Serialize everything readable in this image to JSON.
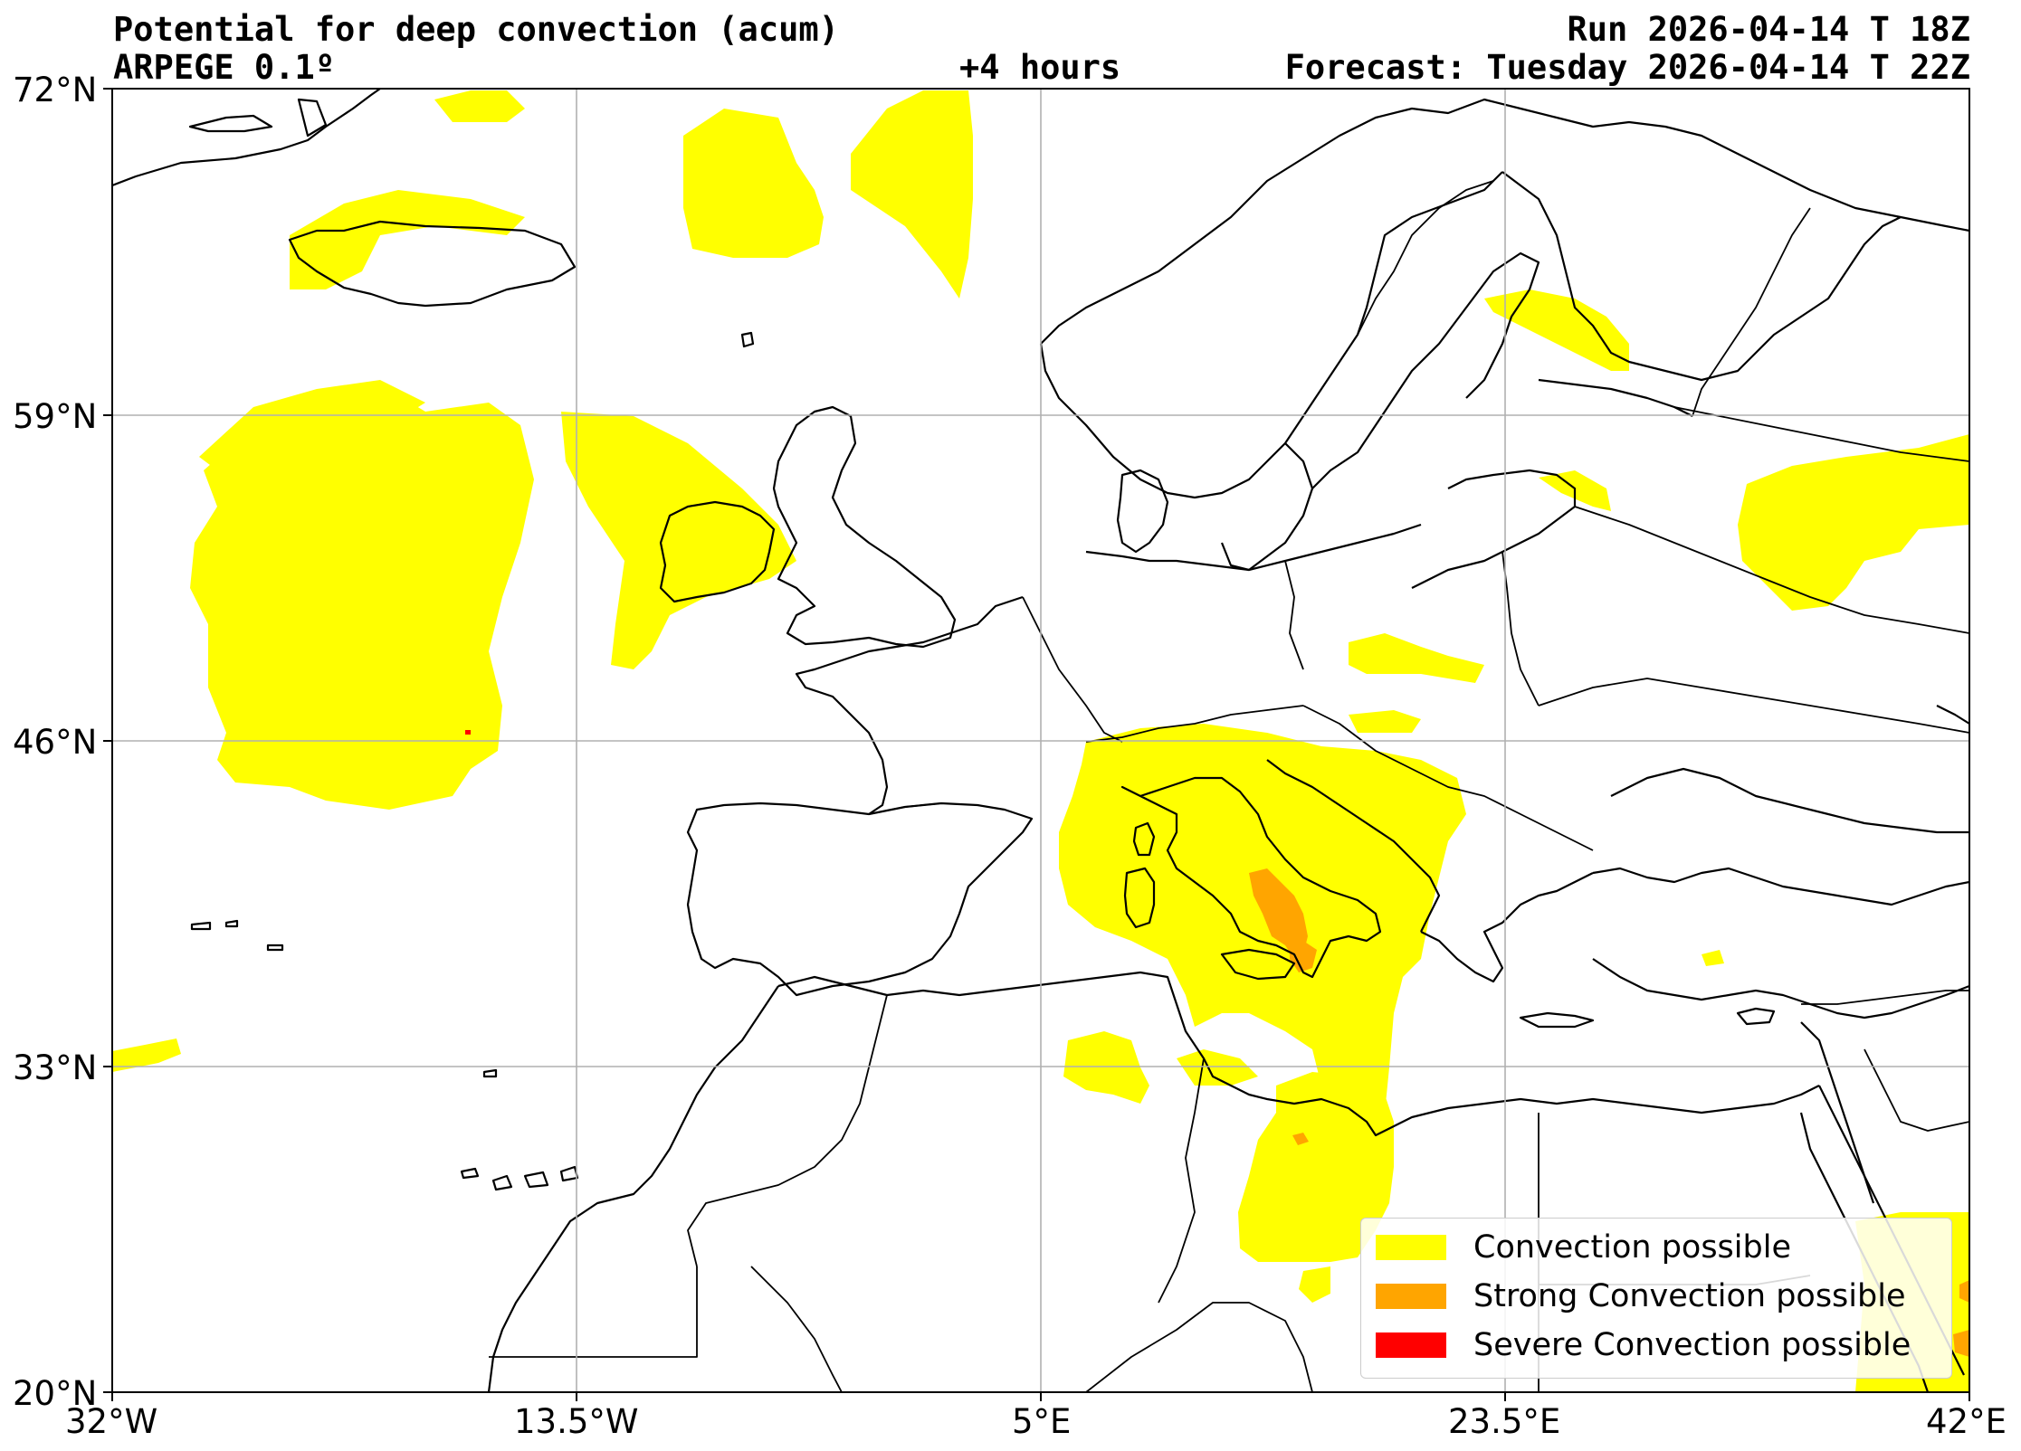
{
  "header": {
    "title": "Potential for deep convection (acum)",
    "model": "ARPEGE 0.1º",
    "lead_time": "+4 hours",
    "run": "Run 2026-04-14 T 18Z",
    "forecast": "Forecast: Tuesday 2026-04-14 T 22Z"
  },
  "axes": {
    "lat_labels": [
      "72°N",
      "59°N",
      "46°N",
      "33°N",
      "20°N"
    ],
    "lon_labels": [
      "32°W",
      "13.5°W",
      "5°E",
      "23.5°E",
      "42°E"
    ]
  },
  "legend": {
    "items": [
      {
        "label": "Convection possible",
        "color": "#ffff00"
      },
      {
        "label": "Strong Convection possible",
        "color": "#ffa500"
      },
      {
        "label": "Severe Convection possible",
        "color": "#ff0000"
      }
    ]
  },
  "colors": {
    "convection": "#ffff00",
    "strong": "#ffa500",
    "severe": "#ff0000",
    "grid": "#b0b0b0",
    "coast": "#000000"
  }
}
